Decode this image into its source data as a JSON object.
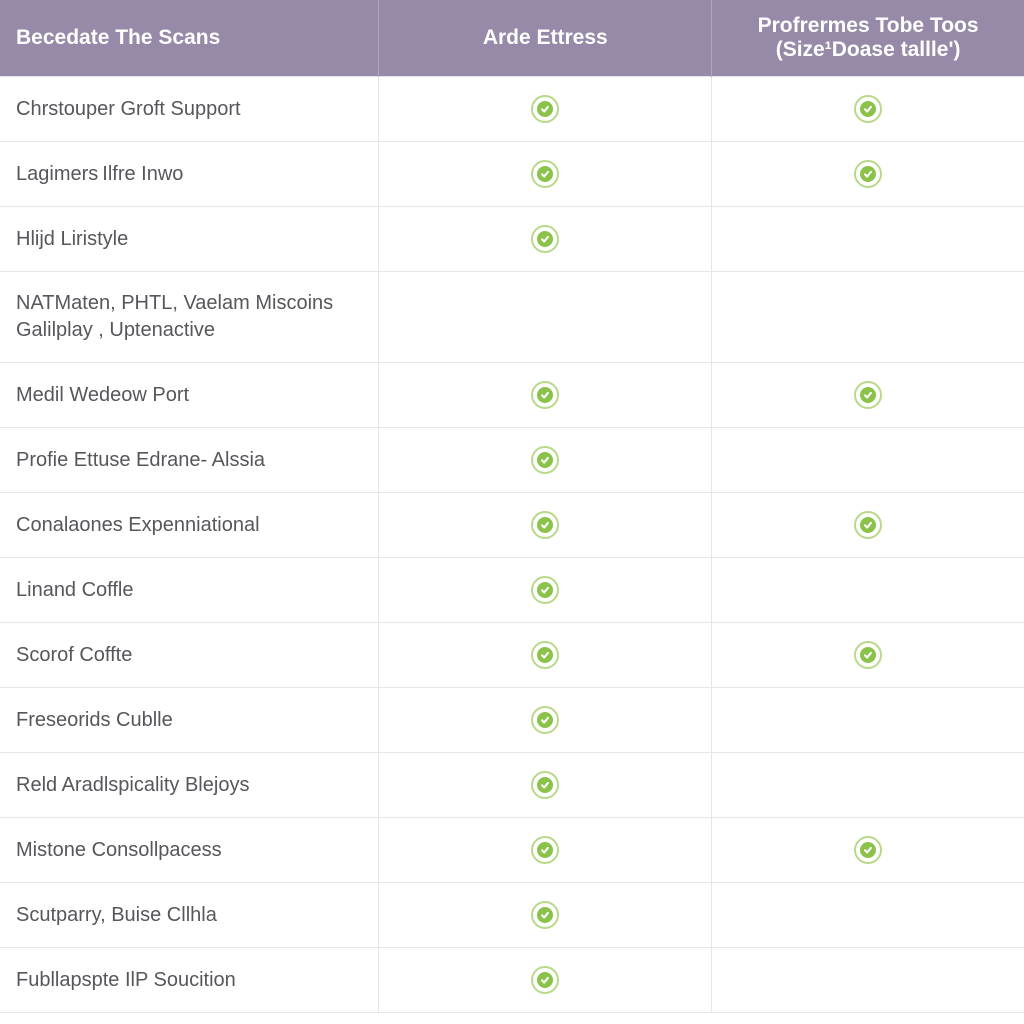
{
  "colors": {
    "header_bg": "#968aa8",
    "header_text": "#ffffff",
    "row_border": "#e6e6e8",
    "feature_text": "#55575b",
    "check_ring": "#b8d98a",
    "check_fill": "#8bc34a"
  },
  "typography": {
    "header_font_size": 21,
    "feature_font_size": 20
  },
  "table": {
    "type": "table",
    "columns": [
      {
        "key": "feature",
        "label": "Becedate The Scans"
      },
      {
        "key": "plan1",
        "label": "Arde Ettress"
      },
      {
        "key": "plan2",
        "label": "Profrermes Tobe Toos (Size¹Doase tallle')"
      }
    ],
    "rows": [
      {
        "feature": "Chrstouper Groft Support",
        "plan1": true,
        "plan2": true
      },
      {
        "feature": "Lagimers Ilfre Inwo",
        "plan1": true,
        "plan2": true
      },
      {
        "feature": "Hlijd Liristyle",
        "plan1": true,
        "plan2": false
      },
      {
        "feature": "NATMaten, PHTL, Vaelam Miscoins Galilplay , Uptenactive",
        "plan1": false,
        "plan2": false
      },
      {
        "feature": "Medil Wedeow Port",
        "plan1": true,
        "plan2": true
      },
      {
        "feature": "Profie Ettuse Edrane- Alssia",
        "plan1": true,
        "plan2": false
      },
      {
        "feature": "Conalaones Expenniational",
        "plan1": true,
        "plan2": true
      },
      {
        "feature": "Linand Coffle",
        "plan1": true,
        "plan2": false
      },
      {
        "feature": "Scorof Coffte",
        "plan1": true,
        "plan2": true
      },
      {
        "feature": "Freseorids Cublle",
        "plan1": true,
        "plan2": false
      },
      {
        "feature": "Reld Aradlspicality Blejoys",
        "plan1": true,
        "plan2": false
      },
      {
        "feature": "Mistone Consollpacess",
        "plan1": true,
        "plan2": true
      },
      {
        "feature": "Scutparry, Buise Cllhla",
        "plan1": true,
        "plan2": false
      },
      {
        "feature": "Fubllapspte IlP Soucition",
        "plan1": true,
        "plan2": false
      }
    ]
  }
}
